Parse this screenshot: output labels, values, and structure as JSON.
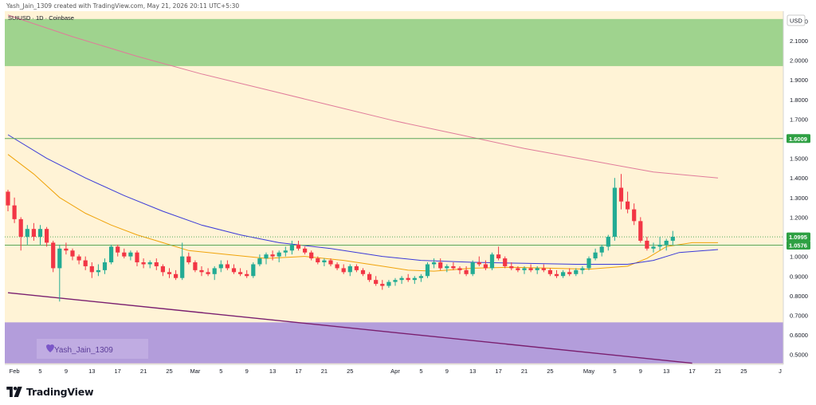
{
  "header": {
    "credit": "Yash_Jain_1309 created with TradingView.com, May 21, 2026 20:11 UTC+5:30"
  },
  "brand": {
    "name": "TradingView"
  },
  "colors": {
    "background": "#fff3d6",
    "up_candle": "#22ab94",
    "down_candle": "#f23645",
    "resistance_zone": "#9fd38e",
    "support_zone": "#b39ddb",
    "ema_fast": "#f0a30a",
    "ema_mid": "#3a3ad8",
    "ema_slow": "#e07b9a",
    "trendline": "#7a1f6f",
    "horizontal_level": "#5aa85a",
    "price_badge": "#2ea043"
  },
  "chart_data": {
    "type": "candlestick",
    "symbol_label": "SUIUSD · 1D · Coinbase",
    "currency_label": "USD",
    "watermark": "Yash_Jain_1309",
    "ylim": [
      0.45,
      2.25
    ],
    "y_ticks": [
      {
        "value": 2.2,
        "label": "2.2000"
      },
      {
        "value": 2.1,
        "label": "2.1000"
      },
      {
        "value": 2.0,
        "label": "2.0000"
      },
      {
        "value": 1.9,
        "label": "1.9000"
      },
      {
        "value": 1.8,
        "label": "1.8000"
      },
      {
        "value": 1.7,
        "label": "1.7000"
      },
      {
        "value": 1.5,
        "label": "1.5000"
      },
      {
        "value": 1.4,
        "label": "1.4000"
      },
      {
        "value": 1.3,
        "label": "1.3000"
      },
      {
        "value": 1.2,
        "label": "1.2000"
      },
      {
        "value": 1.0,
        "label": "1.0000"
      },
      {
        "value": 0.9,
        "label": "0.9000"
      },
      {
        "value": 0.8,
        "label": "0.8000"
      },
      {
        "value": 0.7,
        "label": "0.7000"
      },
      {
        "value": 0.6,
        "label": "0.6000"
      },
      {
        "value": 0.5,
        "label": "0.5000"
      }
    ],
    "price_badges": [
      {
        "value": 1.6009,
        "label": "1.6009"
      },
      {
        "value": 1.0995,
        "label": "1.0995"
      },
      {
        "value": 1.0576,
        "label": "1.0576"
      }
    ],
    "x_ticks": [
      {
        "i": 1,
        "label": "Feb"
      },
      {
        "i": 5,
        "label": "5"
      },
      {
        "i": 9,
        "label": "9"
      },
      {
        "i": 13,
        "label": "13"
      },
      {
        "i": 17,
        "label": "17"
      },
      {
        "i": 21,
        "label": "21"
      },
      {
        "i": 25,
        "label": "25"
      },
      {
        "i": 29,
        "label": "Mar"
      },
      {
        "i": 33,
        "label": "5"
      },
      {
        "i": 37,
        "label": "9"
      },
      {
        "i": 41,
        "label": "13"
      },
      {
        "i": 45,
        "label": "17"
      },
      {
        "i": 49,
        "label": "21"
      },
      {
        "i": 53,
        "label": "25"
      },
      {
        "i": 60,
        "label": "Apr"
      },
      {
        "i": 64,
        "label": "5"
      },
      {
        "i": 68,
        "label": "9"
      },
      {
        "i": 72,
        "label": "13"
      },
      {
        "i": 76,
        "label": "17"
      },
      {
        "i": 80,
        "label": "21"
      },
      {
        "i": 84,
        "label": "25"
      },
      {
        "i": 90,
        "label": "May"
      },
      {
        "i": 94,
        "label": "5"
      },
      {
        "i": 98,
        "label": "9"
      },
      {
        "i": 102,
        "label": "13"
      },
      {
        "i": 106,
        "label": "17"
      },
      {
        "i": 110,
        "label": "21"
      },
      {
        "i": 114,
        "label": "25"
      },
      {
        "i": 121,
        "label": "J"
      }
    ],
    "zones": [
      {
        "name": "resistance",
        "from": 1.97,
        "to": 2.21
      },
      {
        "name": "support",
        "from": 0.455,
        "to": 0.664
      }
    ],
    "levels": [
      {
        "name": "level-1.6009",
        "value": 1.6009,
        "style": "solid"
      },
      {
        "name": "level-1.0995",
        "value": 1.0995,
        "style": "dotted"
      },
      {
        "name": "level-1.0576",
        "value": 1.0576,
        "style": "solid"
      }
    ],
    "trendline": {
      "from": {
        "i": 0,
        "y": 0.815
      },
      "to": {
        "i": 106,
        "y": 0.456
      }
    },
    "candles": [
      [
        1.33,
        1.34,
        1.23,
        1.26
      ],
      [
        1.26,
        1.3,
        1.17,
        1.19
      ],
      [
        1.19,
        1.2,
        1.03,
        1.1
      ],
      [
        1.1,
        1.16,
        1.06,
        1.14
      ],
      [
        1.14,
        1.17,
        1.08,
        1.1
      ],
      [
        1.1,
        1.16,
        1.06,
        1.14
      ],
      [
        1.14,
        1.15,
        1.05,
        1.07
      ],
      [
        1.07,
        1.08,
        0.92,
        0.94
      ],
      [
        0.94,
        1.06,
        0.77,
        1.04
      ],
      [
        1.04,
        1.07,
        1.01,
        1.03
      ],
      [
        1.03,
        1.04,
        0.98,
        1.0
      ],
      [
        1.0,
        1.01,
        0.96,
        0.98
      ],
      [
        0.98,
        1.0,
        0.93,
        0.95
      ],
      [
        0.95,
        0.97,
        0.89,
        0.92
      ],
      [
        0.92,
        0.96,
        0.9,
        0.93
      ],
      [
        0.93,
        0.99,
        0.91,
        0.97
      ],
      [
        0.97,
        1.06,
        0.96,
        1.05
      ],
      [
        1.05,
        1.06,
        1.0,
        1.02
      ],
      [
        1.02,
        1.04,
        0.99,
        1.0
      ],
      [
        1.0,
        1.03,
        0.98,
        1.02
      ],
      [
        1.02,
        1.03,
        0.95,
        0.97
      ],
      [
        0.97,
        0.99,
        0.94,
        0.96
      ],
      [
        0.96,
        0.98,
        0.94,
        0.97
      ],
      [
        0.97,
        0.99,
        0.93,
        0.95
      ],
      [
        0.95,
        0.96,
        0.9,
        0.92
      ],
      [
        0.92,
        0.94,
        0.89,
        0.91
      ],
      [
        0.91,
        0.93,
        0.88,
        0.89
      ],
      [
        0.89,
        1.07,
        0.88,
        1.0
      ],
      [
        1.0,
        1.02,
        0.96,
        0.97
      ],
      [
        0.97,
        0.98,
        0.92,
        0.93
      ],
      [
        0.93,
        0.95,
        0.9,
        0.92
      ],
      [
        0.92,
        0.94,
        0.9,
        0.91
      ],
      [
        0.91,
        0.95,
        0.88,
        0.94
      ],
      [
        0.94,
        0.98,
        0.92,
        0.96
      ],
      [
        0.96,
        0.98,
        0.93,
        0.94
      ],
      [
        0.94,
        0.96,
        0.91,
        0.92
      ],
      [
        0.92,
        0.94,
        0.9,
        0.91
      ],
      [
        0.91,
        0.93,
        0.89,
        0.9
      ],
      [
        0.9,
        0.97,
        0.89,
        0.96
      ],
      [
        0.96,
        1.01,
        0.95,
        0.99
      ],
      [
        0.99,
        1.02,
        0.96,
        1.01
      ],
      [
        1.01,
        1.03,
        0.98,
        1.0
      ],
      [
        1.0,
        1.03,
        0.97,
        1.02
      ],
      [
        1.02,
        1.05,
        1.0,
        1.03
      ],
      [
        1.03,
        1.08,
        1.01,
        1.06
      ],
      [
        1.06,
        1.08,
        1.03,
        1.04
      ],
      [
        1.04,
        1.05,
        1.01,
        1.02
      ],
      [
        1.02,
        1.03,
        0.98,
        0.99
      ],
      [
        0.99,
        1.0,
        0.96,
        0.97
      ],
      [
        0.97,
        0.99,
        0.95,
        0.98
      ],
      [
        0.98,
        0.99,
        0.95,
        0.96
      ],
      [
        0.96,
        0.97,
        0.93,
        0.94
      ],
      [
        0.94,
        0.96,
        0.91,
        0.92
      ],
      [
        0.92,
        0.96,
        0.9,
        0.95
      ],
      [
        0.95,
        0.96,
        0.92,
        0.93
      ],
      [
        0.93,
        0.94,
        0.9,
        0.91
      ],
      [
        0.91,
        0.92,
        0.87,
        0.88
      ],
      [
        0.88,
        0.9,
        0.85,
        0.86
      ],
      [
        0.86,
        0.88,
        0.83,
        0.85
      ],
      [
        0.85,
        0.88,
        0.84,
        0.87
      ],
      [
        0.87,
        0.89,
        0.85,
        0.88
      ],
      [
        0.88,
        0.9,
        0.86,
        0.89
      ],
      [
        0.89,
        0.91,
        0.87,
        0.88
      ],
      [
        0.88,
        0.9,
        0.86,
        0.89
      ],
      [
        0.89,
        0.91,
        0.87,
        0.9
      ],
      [
        0.9,
        0.97,
        0.89,
        0.96
      ],
      [
        0.96,
        0.99,
        0.94,
        0.97
      ],
      [
        0.97,
        0.99,
        0.93,
        0.94
      ],
      [
        0.94,
        0.96,
        0.92,
        0.95
      ],
      [
        0.95,
        0.97,
        0.93,
        0.94
      ],
      [
        0.94,
        0.95,
        0.91,
        0.93
      ],
      [
        0.93,
        0.95,
        0.9,
        0.91
      ],
      [
        0.91,
        0.98,
        0.9,
        0.97
      ],
      [
        0.97,
        1.0,
        0.95,
        0.96
      ],
      [
        0.96,
        0.98,
        0.93,
        0.94
      ],
      [
        0.94,
        1.02,
        0.93,
        1.01
      ],
      [
        1.01,
        1.05,
        0.98,
        0.99
      ],
      [
        0.99,
        1.0,
        0.94,
        0.95
      ],
      [
        0.95,
        0.97,
        0.93,
        0.94
      ],
      [
        0.94,
        0.95,
        0.92,
        0.93
      ],
      [
        0.93,
        0.95,
        0.91,
        0.94
      ],
      [
        0.94,
        0.96,
        0.92,
        0.93
      ],
      [
        0.93,
        0.95,
        0.91,
        0.94
      ],
      [
        0.94,
        0.96,
        0.92,
        0.93
      ],
      [
        0.93,
        0.94,
        0.9,
        0.91
      ],
      [
        0.91,
        0.93,
        0.89,
        0.9
      ],
      [
        0.9,
        0.93,
        0.89,
        0.92
      ],
      [
        0.92,
        0.94,
        0.9,
        0.91
      ],
      [
        0.91,
        0.94,
        0.9,
        0.93
      ],
      [
        0.93,
        0.95,
        0.91,
        0.94
      ],
      [
        0.94,
        1.0,
        0.93,
        0.99
      ],
      [
        0.99,
        1.04,
        0.98,
        1.02
      ],
      [
        1.02,
        1.06,
        1.0,
        1.05
      ],
      [
        1.05,
        1.11,
        1.03,
        1.1
      ],
      [
        1.1,
        1.4,
        1.08,
        1.35
      ],
      [
        1.35,
        1.42,
        1.24,
        1.28
      ],
      [
        1.28,
        1.33,
        1.22,
        1.24
      ],
      [
        1.24,
        1.27,
        1.16,
        1.18
      ],
      [
        1.18,
        1.2,
        1.07,
        1.08
      ],
      [
        1.08,
        1.1,
        1.03,
        1.04
      ],
      [
        1.04,
        1.07,
        1.02,
        1.05
      ],
      [
        1.05,
        1.1,
        1.03,
        1.06
      ],
      [
        1.06,
        1.09,
        1.03,
        1.08
      ],
      [
        1.08,
        1.13,
        1.06,
        1.1
      ]
    ],
    "candles_start_index": 0,
    "emas": [
      {
        "name": "ema-fast",
        "color": "#f0a30a",
        "points": [
          [
            0,
            1.52
          ],
          [
            4,
            1.42
          ],
          [
            8,
            1.3
          ],
          [
            12,
            1.22
          ],
          [
            16,
            1.16
          ],
          [
            20,
            1.11
          ],
          [
            24,
            1.07
          ],
          [
            28,
            1.03
          ],
          [
            34,
            1.01
          ],
          [
            40,
            0.99
          ],
          [
            46,
            1.0
          ],
          [
            52,
            0.98
          ],
          [
            58,
            0.95
          ],
          [
            62,
            0.93
          ],
          [
            66,
            0.925
          ],
          [
            72,
            0.94
          ],
          [
            78,
            0.945
          ],
          [
            84,
            0.94
          ],
          [
            90,
            0.935
          ],
          [
            96,
            0.95
          ],
          [
            99,
            0.99
          ],
          [
            102,
            1.05
          ],
          [
            106,
            1.07
          ],
          [
            110,
            1.07
          ]
        ]
      },
      {
        "name": "ema-mid",
        "color": "#3a3ad8",
        "points": [
          [
            0,
            1.62
          ],
          [
            6,
            1.5
          ],
          [
            12,
            1.4
          ],
          [
            18,
            1.31
          ],
          [
            24,
            1.23
          ],
          [
            30,
            1.16
          ],
          [
            36,
            1.11
          ],
          [
            42,
            1.07
          ],
          [
            50,
            1.04
          ],
          [
            58,
            1.0
          ],
          [
            64,
            0.98
          ],
          [
            72,
            0.97
          ],
          [
            80,
            0.965
          ],
          [
            88,
            0.96
          ],
          [
            96,
            0.96
          ],
          [
            100,
            0.98
          ],
          [
            104,
            1.02
          ],
          [
            108,
            1.03
          ],
          [
            110,
            1.035
          ]
        ]
      },
      {
        "name": "ema-slow",
        "color": "#e07b9a",
        "points": [
          [
            0,
            2.23
          ],
          [
            10,
            2.12
          ],
          [
            20,
            2.02
          ],
          [
            30,
            1.93
          ],
          [
            40,
            1.85
          ],
          [
            50,
            1.77
          ],
          [
            60,
            1.69
          ],
          [
            70,
            1.62
          ],
          [
            80,
            1.55
          ],
          [
            90,
            1.49
          ],
          [
            100,
            1.43
          ],
          [
            110,
            1.4
          ]
        ]
      }
    ]
  }
}
